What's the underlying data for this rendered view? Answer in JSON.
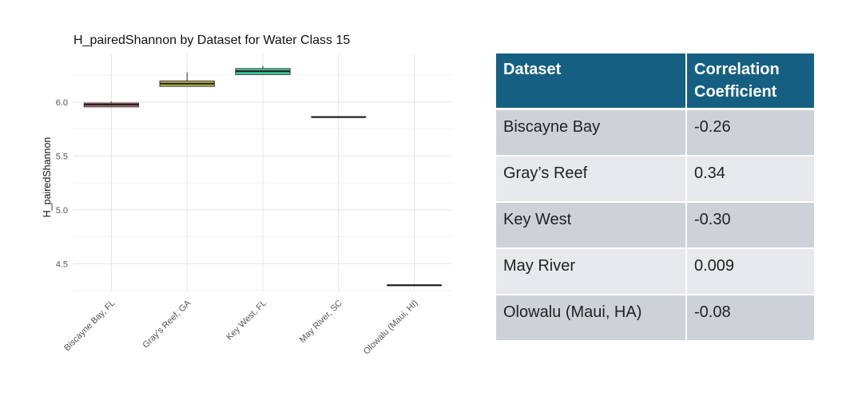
{
  "chart_data": {
    "type": "box",
    "title": "H_pairedShannon by Dataset for Water Class 15",
    "xlabel": "",
    "ylabel": "H_pairedShannon",
    "ylim": [
      4.25,
      6.45
    ],
    "yticks": [
      4.5,
      5.0,
      5.5,
      6.0
    ],
    "ytick_labels": [
      "4.5",
      "5.0",
      "5.5",
      "6.0"
    ],
    "grid": true,
    "legend": "none",
    "categories": [
      "Biscayne Bay, FL",
      "Gray's Reef, GA",
      "Key West, FL",
      "May River, SC",
      "Olowalu (Maui, HI)"
    ],
    "boxes": [
      {
        "category": "Biscayne Bay, FL",
        "min": 5.95,
        "q1": 5.955,
        "median": 5.975,
        "q3": 5.99,
        "max": 6.005,
        "color": "#F08C87"
      },
      {
        "category": "Gray's Reef, GA",
        "min": 6.145,
        "q1": 6.145,
        "median": 6.17,
        "q3": 6.195,
        "max": 6.275,
        "color": "#BFBB48"
      },
      {
        "category": "Key West, FL",
        "min": 6.25,
        "q1": 6.255,
        "median": 6.285,
        "q3": 6.31,
        "max": 6.335,
        "color": "#3FD6A6"
      },
      {
        "category": "May River, SC",
        "min": 5.86,
        "q1": 5.86,
        "median": 5.86,
        "q3": 5.86,
        "max": 5.86,
        "color": "#5BB4E6"
      },
      {
        "category": "Olowalu (Maui, HI)",
        "min": 4.3,
        "q1": 4.3,
        "median": 4.3,
        "q3": 4.3,
        "max": 4.3,
        "color": "#E67EE6"
      }
    ]
  },
  "table": {
    "headers": [
      "Dataset",
      "Correlation Coefficient"
    ],
    "rows": [
      [
        "Biscayne Bay",
        "-0.26"
      ],
      [
        "Gray’s Reef",
        "0.34"
      ],
      [
        "Key West",
        "-0.30"
      ],
      [
        "May River",
        "0.009"
      ],
      [
        "Olowalu (Maui, HA)",
        "-0.08"
      ]
    ]
  }
}
